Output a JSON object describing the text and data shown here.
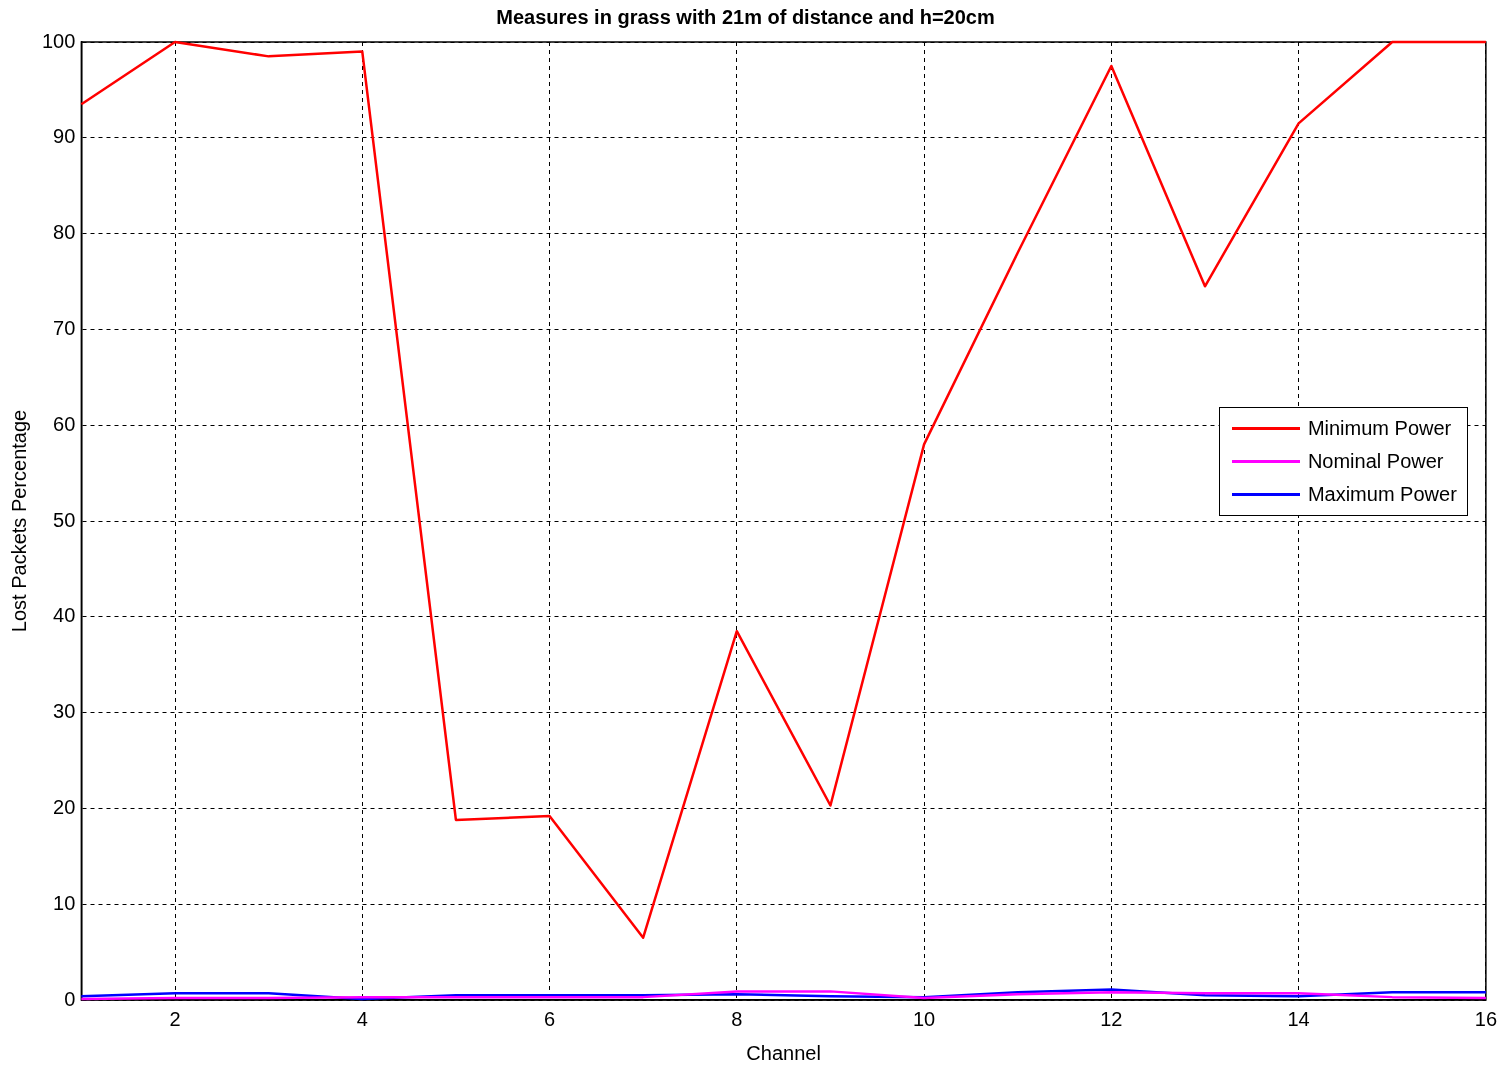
{
  "chart_data": {
    "type": "line",
    "title": "Measures in grass with 21m of distance and h=20cm",
    "xlabel": "Channel",
    "ylabel": "Lost Packets Percentage",
    "x": [
      1,
      2,
      3,
      4,
      5,
      6,
      7,
      8,
      9,
      10,
      11,
      12,
      13,
      14,
      15,
      16
    ],
    "series": [
      {
        "name": "Minimum Power",
        "color": "#ff0000",
        "values": [
          93.5,
          100,
          98.5,
          99,
          18.8,
          19.2,
          6.5,
          38.5,
          20.3,
          58,
          78,
          97.5,
          74.5,
          91.5,
          100,
          100
        ]
      },
      {
        "name": "Nominal Power",
        "color": "#ff00ff",
        "values": [
          0.1,
          0.2,
          0.2,
          0.3,
          0.3,
          0.3,
          0.3,
          0.9,
          0.9,
          0.2,
          0.6,
          0.8,
          0.7,
          0.7,
          0.3,
          0.2
        ]
      },
      {
        "name": "Maximum Power",
        "color": "#0000ff",
        "values": [
          0.4,
          0.7,
          0.7,
          0.1,
          0.5,
          0.5,
          0.5,
          0.6,
          0.4,
          0.3,
          0.8,
          1.1,
          0.5,
          0.4,
          0.8,
          0.8
        ]
      }
    ],
    "xlim": [
      1,
      16
    ],
    "xticks": [
      2,
      4,
      6,
      8,
      10,
      12,
      14,
      16
    ],
    "ylim": [
      0,
      100
    ],
    "yticks": [
      0,
      10,
      20,
      30,
      40,
      50,
      60,
      70,
      80,
      90,
      100
    ],
    "grid": true,
    "legend": "right",
    "marker": "none",
    "line_style": "solid"
  }
}
